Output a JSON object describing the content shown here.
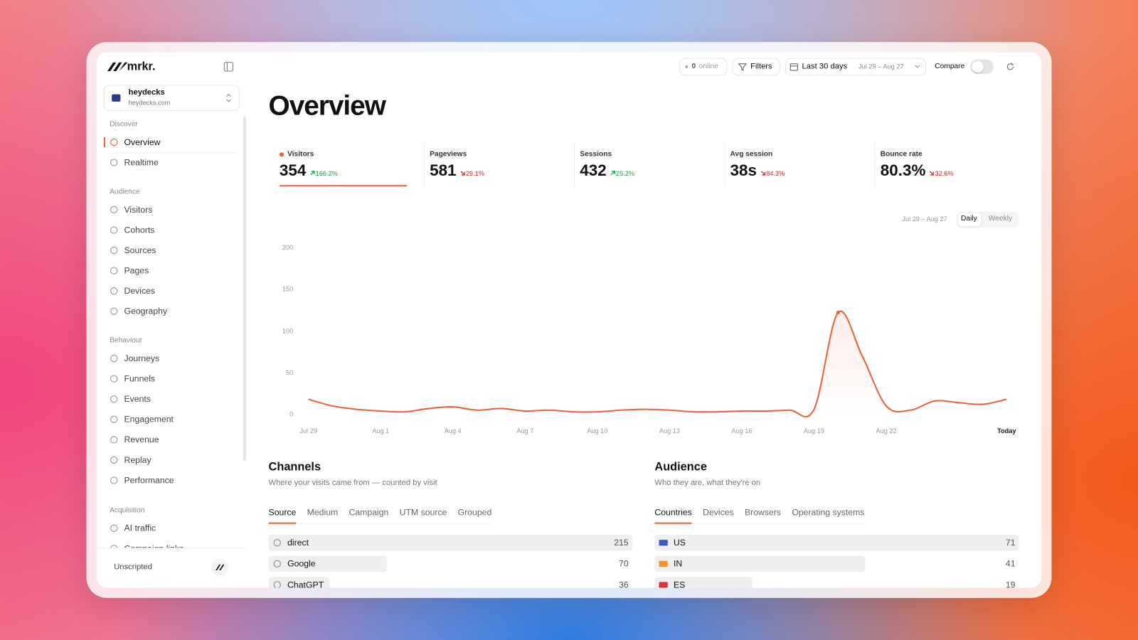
{
  "brand": "mrkr.",
  "workspace": {
    "name": "heydecks",
    "domain": "heydecks.com"
  },
  "sidebar": {
    "sections": [
      {
        "title": "Discover",
        "items": [
          "Overview",
          "Realtime"
        ]
      },
      {
        "title": "Audience",
        "items": [
          "Visitors",
          "Cohorts",
          "Sources",
          "Pages",
          "Devices",
          "Geography"
        ]
      },
      {
        "title": "Behaviour",
        "items": [
          "Journeys",
          "Funnels",
          "Events",
          "Engagement",
          "Revenue",
          "Replay",
          "Performance"
        ]
      },
      {
        "title": "Acquisition",
        "items": [
          "AI traffic",
          "Campaign links"
        ]
      }
    ],
    "footer": "Unscripted"
  },
  "topbar": {
    "online_count": "0",
    "online_label": "online",
    "filters": "Filters",
    "range": "Last 30 days",
    "range_dates": "Jul 29 – Aug 27",
    "compare": "Compare"
  },
  "page_title": "Overview",
  "metrics": [
    {
      "label": "Visitors",
      "value": "354",
      "change": "166.2%",
      "direction": "up"
    },
    {
      "label": "Pageviews",
      "value": "581",
      "change": "29.1%",
      "direction": "down"
    },
    {
      "label": "Sessions",
      "value": "432",
      "change": "25.2%",
      "direction": "up"
    },
    {
      "label": "Avg session",
      "value": "38s",
      "change": "84.3%",
      "direction": "down"
    },
    {
      "label": "Bounce rate",
      "value": "80.3%",
      "change": "32.6%",
      "direction": "down"
    }
  ],
  "chart_data": {
    "type": "line",
    "range_label": "Jul 29 – Aug 27",
    "granularity": [
      "Daily",
      "Weekly"
    ],
    "categories": [
      "Jul 29",
      null,
      null,
      "Aug 1",
      null,
      null,
      "Aug 4",
      null,
      null,
      "Aug 7",
      null,
      null,
      "Aug 10",
      null,
      null,
      "Aug 13",
      null,
      null,
      "Aug 16",
      null,
      null,
      "Aug 19",
      null,
      null,
      "Aug 22",
      null,
      null,
      null,
      null,
      "Today"
    ],
    "series": [
      {
        "name": "Visitors",
        "color": "#e8623f",
        "values": [
          18,
          10,
          6,
          4,
          3,
          7,
          9,
          5,
          7,
          4,
          5,
          3,
          3,
          5,
          6,
          5,
          3,
          3,
          4,
          4,
          5,
          6,
          122,
          70,
          10,
          5,
          16,
          14,
          12,
          18
        ]
      }
    ],
    "ylim": [
      0,
      200
    ],
    "yticks": [
      0,
      50,
      100,
      150,
      200
    ],
    "grid": false
  },
  "channels": {
    "title": "Channels",
    "subtitle": "Where your visits came from — counted by visit",
    "tabs": [
      "Source",
      "Medium",
      "Campaign",
      "UTM source",
      "Grouped"
    ],
    "rows": [
      {
        "label": "direct",
        "value": 215
      },
      {
        "label": "Google",
        "value": 70
      },
      {
        "label": "ChatGPT",
        "value": 36
      }
    ]
  },
  "audience": {
    "title": "Audience",
    "subtitle": "Who they are, what they're on",
    "tabs": [
      "Countries",
      "Devices",
      "Browsers",
      "Operating systems"
    ],
    "rows": [
      {
        "label": "US",
        "value": 71
      },
      {
        "label": "IN",
        "value": 41
      },
      {
        "label": "ES",
        "value": 19
      }
    ]
  }
}
